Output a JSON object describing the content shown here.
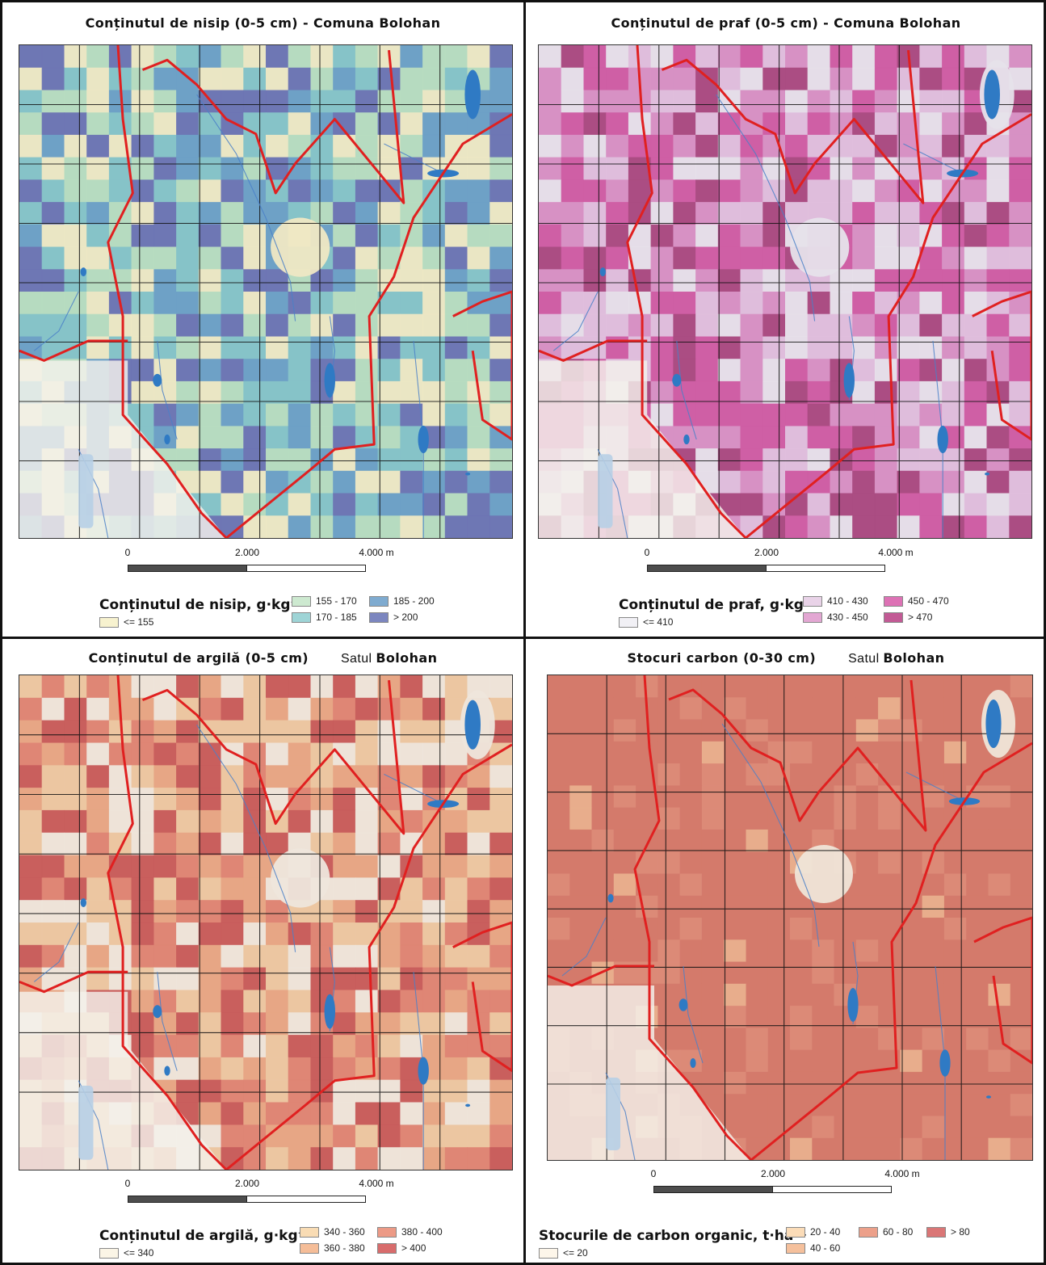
{
  "panels": [
    {
      "id": "nisip",
      "title": "Conținutul de nisip (0-5 cm) - Comuna Bolohan",
      "place_prefix": "",
      "place_name": "",
      "legend_title": "Conținutul de nisip, g·kg⁻¹",
      "legend_items": [
        {
          "label": "<= 155",
          "color": "#f7f2cf"
        },
        {
          "label": "155 - 170",
          "color": "#cde9d0"
        },
        {
          "label": "170 - 185",
          "color": "#9ed4d6"
        },
        {
          "label": "185 - 200",
          "color": "#7fabd0"
        },
        {
          "label": "> 200",
          "color": "#7c86bf"
        }
      ],
      "palette": [
        "#efe8c4",
        "#b8dcc0",
        "#86c3c8",
        "#6d9fc6",
        "#6d73b3"
      ]
    },
    {
      "id": "praf",
      "title": "Conținutul de praf (0-5 cm) - Comuna Bolohan",
      "place_prefix": "",
      "place_name": "",
      "legend_title": "Conținutul de praf, g·kg⁻¹",
      "legend_items": [
        {
          "label": "<= 410",
          "color": "#f1f0f5"
        },
        {
          "label": "410 - 430",
          "color": "#e9d3e8"
        },
        {
          "label": "430 - 450",
          "color": "#e3a7d3"
        },
        {
          "label": "450 - 470",
          "color": "#dd72b5"
        },
        {
          "label": "> 470",
          "color": "#c25a95"
        }
      ],
      "palette": [
        "#e6e2ea",
        "#dfc0dd",
        "#d791c4",
        "#cf5da3",
        "#a94a80"
      ]
    },
    {
      "id": "argila",
      "title": "Conținutul de argilă (0-5 cm)",
      "place_prefix": "Satul",
      "place_name": "Bolohan",
      "legend_title": "Conținutul de argilă, g·kg⁻¹",
      "legend_items": [
        {
          "label": "<= 340",
          "color": "#fbf5e6"
        },
        {
          "label": "340 - 360",
          "color": "#f9dcb4"
        },
        {
          "label": "360 - 380",
          "color": "#f5bd98"
        },
        {
          "label": "380 - 400",
          "color": "#ec9a86"
        },
        {
          "label": "> 400",
          "color": "#d86c6c"
        }
      ],
      "palette": [
        "#eee6dc",
        "#ecc7a2",
        "#e7a585",
        "#de8474",
        "#c75b5b"
      ]
    },
    {
      "id": "carbon",
      "title": "Stocuri carbon (0-30 cm)",
      "place_prefix": "Satul",
      "place_name": "Bolohan",
      "legend_title": "Stocurile de carbon organic, t·ha⁻¹",
      "legend_items": [
        {
          "label": "<= 20",
          "color": "#fdf6ea"
        },
        {
          "label": "20 - 40",
          "color": "#fbdcb8"
        },
        {
          "label": "40 - 60",
          "color": "#f5c09c"
        },
        {
          "label": "60 - 80",
          "color": "#eca08a"
        },
        {
          "label": "> 80",
          "color": "#da7676"
        }
      ],
      "palette": [
        "#efe5d8",
        "#f0cfa8",
        "#e9b08e",
        "#dc8b78",
        "#d47a6c"
      ]
    }
  ],
  "scale_labels": [
    "0",
    "2.000",
    "4.000 m"
  ],
  "colors": {
    "boundary": "#e02020",
    "water": "#2f7ac4",
    "stream": "#4a80c8",
    "grid": "#111111",
    "neighbor": "#f4f1ec"
  }
}
